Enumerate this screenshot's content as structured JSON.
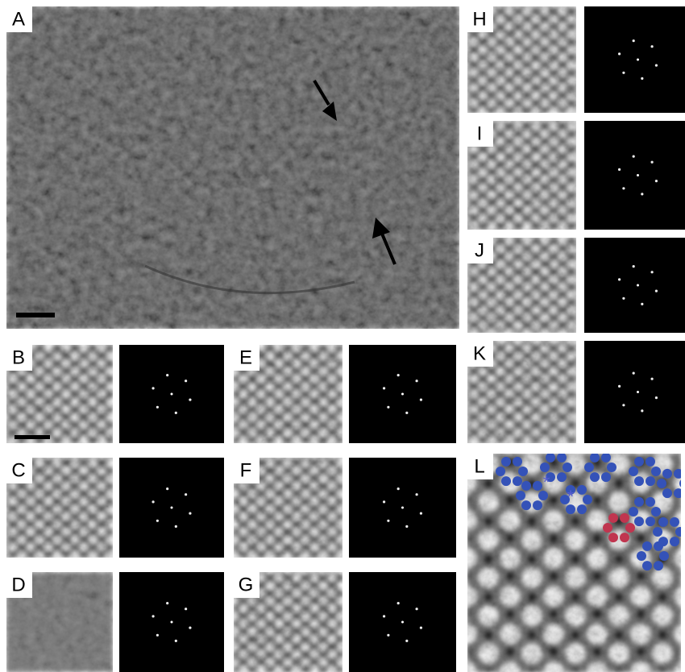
{
  "panels": [
    {
      "label": "A"
    },
    {
      "label": "B"
    },
    {
      "label": "C"
    },
    {
      "label": "D"
    },
    {
      "label": "E"
    },
    {
      "label": "F"
    },
    {
      "label": "G"
    },
    {
      "label": "H"
    },
    {
      "label": "I"
    },
    {
      "label": "J"
    },
    {
      "label": "K"
    },
    {
      "label": "L"
    }
  ],
  "annotations": [
    "*",
    "*"
  ]
}
